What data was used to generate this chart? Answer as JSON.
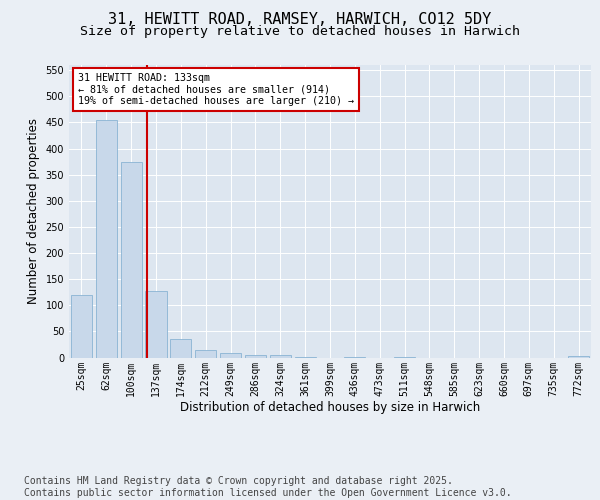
{
  "title1": "31, HEWITT ROAD, RAMSEY, HARWICH, CO12 5DY",
  "title2": "Size of property relative to detached houses in Harwich",
  "xlabel": "Distribution of detached houses by size in Harwich",
  "ylabel": "Number of detached properties",
  "categories": [
    "25sqm",
    "62sqm",
    "100sqm",
    "137sqm",
    "174sqm",
    "212sqm",
    "249sqm",
    "286sqm",
    "324sqm",
    "361sqm",
    "399sqm",
    "436sqm",
    "473sqm",
    "511sqm",
    "548sqm",
    "585sqm",
    "623sqm",
    "660sqm",
    "697sqm",
    "735sqm",
    "772sqm"
  ],
  "values": [
    120,
    455,
    375,
    128,
    35,
    15,
    8,
    5,
    5,
    1,
    0,
    1,
    0,
    1,
    0,
    0,
    0,
    0,
    0,
    0,
    3
  ],
  "bar_color": "#c8d8ea",
  "bar_edge_color": "#8ab4d4",
  "vline_x": 2.65,
  "vline_color": "#cc0000",
  "annotation_line1": "31 HEWITT ROAD: 133sqm",
  "annotation_line2": "← 81% of detached houses are smaller (914)",
  "annotation_line3": "19% of semi-detached houses are larger (210) →",
  "annotation_box_color": "#cc0000",
  "ylim": [
    0,
    560
  ],
  "yticks": [
    0,
    50,
    100,
    150,
    200,
    250,
    300,
    350,
    400,
    450,
    500,
    550
  ],
  "bg_color": "#eaeff5",
  "plot_bg_color": "#dde6f0",
  "grid_color": "#ffffff",
  "footer": "Contains HM Land Registry data © Crown copyright and database right 2025.\nContains public sector information licensed under the Open Government Licence v3.0.",
  "title_fontsize": 11,
  "subtitle_fontsize": 9.5,
  "axis_label_fontsize": 8.5,
  "tick_fontsize": 7,
  "footer_fontsize": 7
}
